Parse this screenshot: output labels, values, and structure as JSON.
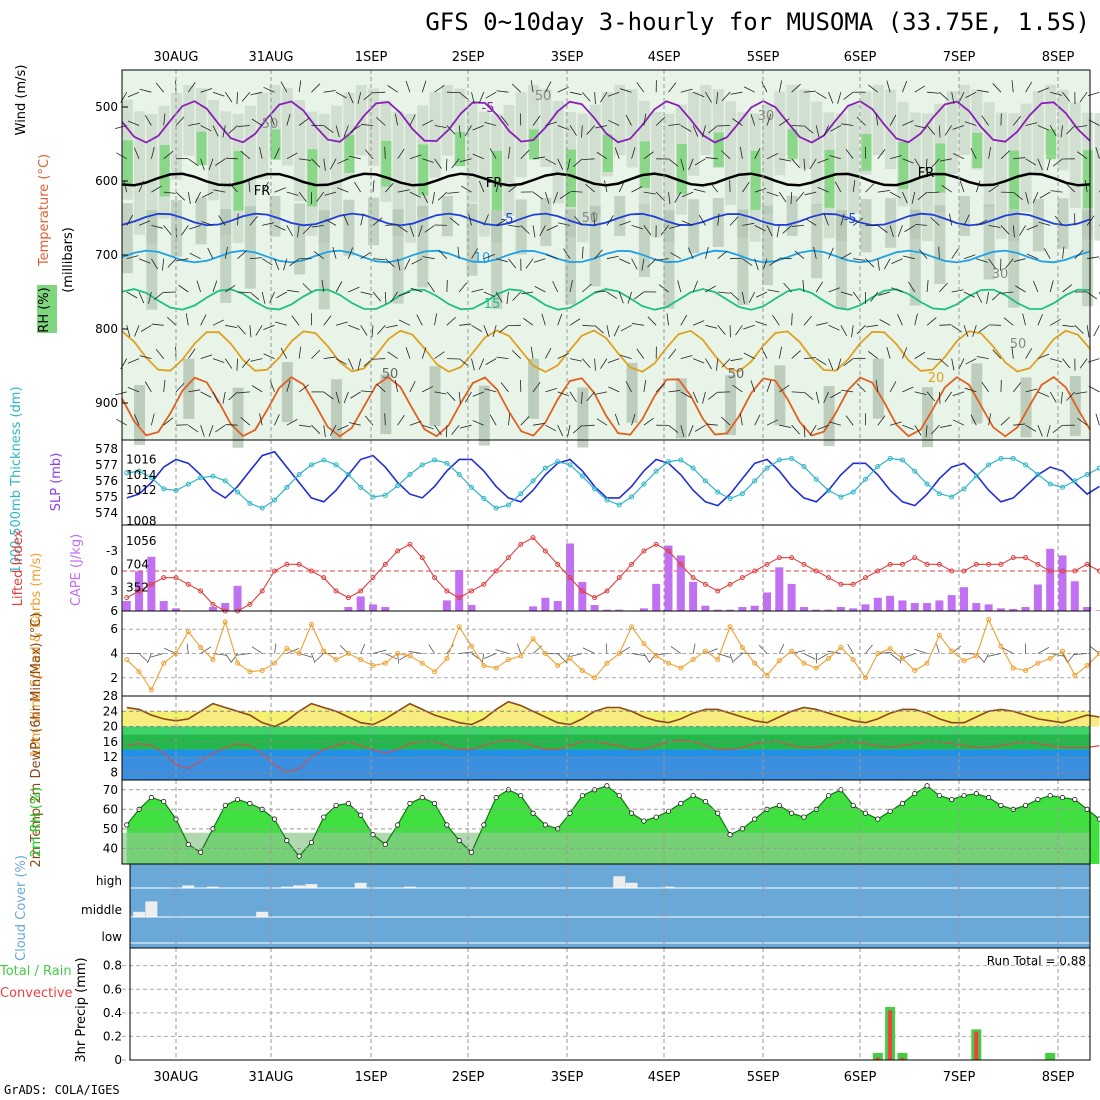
{
  "title": "GFS 0~10day 3-hourly for MUSOMA (33.75E, 1.5S)",
  "footer": "GrADS: COLA/IGES",
  "dates": [
    "30AUG",
    "31AUG",
    "1SEP",
    "2SEP",
    "3SEP",
    "4SEP",
    "5SEP",
    "6SEP",
    "7SEP",
    "8SEP"
  ],
  "colors": {
    "rh_light": "#e8f4e8",
    "rh_mid": "#c9d9c9",
    "rh_gray": "#a9bca9",
    "rh_green": "#7ed67e",
    "rh_bright": "#2bd62b",
    "temp_m5": "#8a1fb8",
    "temp_fr": "#000000",
    "temp_5": "#1f3fd6",
    "temp_10": "#1f9fe6",
    "temp_15": "#1fbf7f",
    "temp_20": "#e0a020",
    "temp_25": "#e06020",
    "slp": "#1f2fd6",
    "thk": "#2fb6c9",
    "li": "#e04040",
    "cape": "#c070f0",
    "wind": "#f0a030",
    "temp2m": "#8a4a1a",
    "dewpt": "#d05050",
    "rh2m": "#22cc22",
    "cloud_bg": "#6aa8d8",
    "precip_total": "#44cc44",
    "precip_conv": "#ee4040"
  },
  "chart_data": [
    {
      "panel": "profile",
      "type": "heatmap",
      "ylabel_wind": "Wind (m/s)",
      "ylabel_temp": "Temperature (°C)",
      "ylabel_rh": "RH (%)",
      "ylabel_units": "(millibars)",
      "y_ticks": [
        "500",
        "600",
        "700",
        "800",
        "900"
      ],
      "ylim": [
        450,
        950
      ],
      "isotherm_labels": [
        "-5",
        "FR",
        "FR",
        "FR",
        "-5",
        "-5",
        "10",
        "15",
        "20",
        "50",
        "50",
        "30",
        "50",
        "50",
        "50",
        "30",
        "50"
      ],
      "isotherms": [
        {
          "name": "-5",
          "mean_level": 520,
          "amp": 28
        },
        {
          "name": "FR",
          "mean_level": 598,
          "amp": 8
        },
        {
          "name": "5",
          "mean_level": 652,
          "amp": 8
        },
        {
          "name": "10",
          "mean_level": 702,
          "amp": 8
        },
        {
          "name": "15",
          "mean_level": 760,
          "amp": 14
        },
        {
          "name": "20",
          "mean_level": 830,
          "amp": 28
        },
        {
          "name": "25",
          "mean_level": 905,
          "amp": 40
        }
      ]
    },
    {
      "panel": "slp_thickness",
      "type": "line",
      "ylabel_left": "1000-500mb Thickness (dm)",
      "ylabel_right": "SLP (mb)",
      "y_ticks_left": [
        "578",
        "577",
        "576",
        "575",
        "574"
      ],
      "y_ticks_right": [
        "1016",
        "1014",
        "1012",
        "1008"
      ],
      "slp": [
        1011,
        1011.5,
        1013,
        1015,
        1016,
        1015.5,
        1014,
        1012,
        1011,
        1012.5,
        1014.5,
        1016.5,
        1017,
        1015,
        1013,
        1011,
        1010.5,
        1012,
        1014,
        1016,
        1016.5,
        1015,
        1013,
        1011.5,
        1011,
        1012.5,
        1014.5,
        1016,
        1016,
        1014.5,
        1012.5,
        1011,
        1010.5,
        1012,
        1014,
        1015.5,
        1016,
        1014.5,
        1012.5,
        1011,
        1011,
        1012.5,
        1014.5,
        1016,
        1015.5,
        1014,
        1012,
        1010.5,
        1010,
        1011.5,
        1013.5,
        1015.5,
        1016,
        1014.5,
        1012.5,
        1011,
        1010.5,
        1012,
        1014,
        1015.5,
        1015.5,
        1014,
        1012,
        1010.5,
        1010,
        1011.5,
        1013.5,
        1015,
        1015.5,
        1014,
        1012,
        1010.5,
        1011,
        1012.5,
        1014,
        1015,
        1014.5,
        1013,
        1011.5,
        1012.5
      ],
      "thickness": [
        576.5,
        576.6,
        576.2,
        575.5,
        575.4,
        575.8,
        576.2,
        576.3,
        576.0,
        575.3,
        574.6,
        574.3,
        574.8,
        575.6,
        576.4,
        577.0,
        577.3,
        577.0,
        576.4,
        575.6,
        575.0,
        575.1,
        575.7,
        576.4,
        577.0,
        577.3,
        577.1,
        576.4,
        575.6,
        574.9,
        574.3,
        574.5,
        575.2,
        576.0,
        576.8,
        577.2,
        577.0,
        576.3,
        575.5,
        574.8,
        574.5,
        575.0,
        575.8,
        576.6,
        577.2,
        577.3,
        576.8,
        576.0,
        575.3,
        574.9,
        575.2,
        576.0,
        576.8,
        577.3,
        577.4,
        576.9,
        576.1,
        575.4,
        575.0,
        575.3,
        576.1,
        576.9,
        577.4,
        577.3,
        576.6,
        575.8,
        575.2,
        575.0,
        575.5,
        576.3,
        577.0,
        577.4,
        577.4,
        577.0,
        576.4,
        575.8,
        575.6,
        576.0,
        576.4,
        576.8
      ]
    },
    {
      "panel": "li_cape",
      "type": "bar",
      "ylabel_left": "Lifted Index",
      "ylabel_right": "CAPE (J/kg)",
      "y_ticks_left": [
        "-3",
        "0",
        "3",
        "6"
      ],
      "y_ticks_right": [
        "1056",
        "704",
        "352"
      ],
      "lifted_index": [
        4,
        3,
        2,
        1,
        1,
        2,
        3,
        5,
        6,
        6,
        5,
        3,
        0,
        -1,
        -1,
        0,
        1,
        3,
        4,
        3,
        1,
        -1,
        -3,
        -4,
        -2,
        1,
        3,
        4,
        3,
        2,
        0,
        -2,
        -4,
        -5,
        -3,
        -1,
        1,
        3,
        4,
        3,
        1,
        -1,
        -3,
        -4,
        -3,
        -1,
        1,
        2,
        3,
        2,
        1,
        0,
        -1,
        -2,
        -2,
        -1,
        0,
        1,
        2,
        2,
        1,
        0,
        -1,
        -1,
        -2,
        -1,
        -1,
        0,
        0,
        -1,
        -1,
        -1,
        -2,
        -2,
        -1,
        0,
        0,
        0,
        -1,
        0
      ],
      "cape": [
        150,
        600,
        820,
        150,
        40,
        0,
        0,
        60,
        120,
        380,
        0,
        0,
        0,
        0,
        0,
        0,
        0,
        0,
        60,
        220,
        100,
        60,
        0,
        0,
        0,
        0,
        160,
        620,
        90,
        0,
        0,
        0,
        0,
        70,
        200,
        150,
        1020,
        440,
        90,
        20,
        20,
        0,
        40,
        410,
        990,
        840,
        440,
        80,
        20,
        20,
        60,
        80,
        280,
        660,
        410,
        60,
        20,
        20,
        60,
        40,
        100,
        200,
        230,
        160,
        120,
        120,
        160,
        240,
        360,
        120,
        100,
        40,
        30,
        60,
        400,
        940,
        840,
        450,
        60,
        10
      ]
    },
    {
      "panel": "wind10m",
      "type": "line",
      "ylabel": "10m Wind Speed & Barbs (m/s)",
      "y_ticks": [
        "6",
        "4",
        "2"
      ],
      "ylim": [
        0.5,
        7.5
      ],
      "speed": [
        3.5,
        2.5,
        1.0,
        3.2,
        4.0,
        5.8,
        4.5,
        3.5,
        6.6,
        3.2,
        2.5,
        2.6,
        3.2,
        4.4,
        4.0,
        6.4,
        4.2,
        3.5,
        4.0,
        3.5,
        3.0,
        3.2,
        4.0,
        3.8,
        3.2,
        2.5,
        3.6,
        6.2,
        4.6,
        3.0,
        2.8,
        3.5,
        3.8,
        5.2,
        4.0,
        3.0,
        3.6,
        2.6,
        2.0,
        3.2,
        4.0,
        6.2,
        4.8,
        3.8,
        3.2,
        2.8,
        3.5,
        4.2,
        3.5,
        6.2,
        4.5,
        3.2,
        2.2,
        3.4,
        4.2,
        3.2,
        2.8,
        3.6,
        4.5,
        3.5,
        2.0,
        4.0,
        4.4,
        3.6,
        2.6,
        3.2,
        5.5,
        4.2,
        3.4,
        3.8,
        6.8,
        4.6,
        2.8,
        2.6,
        3.2,
        3.6,
        4.2,
        2.2,
        3.0,
        4.0
      ]
    },
    {
      "panel": "temp2m",
      "type": "area",
      "ylabel": "2m Temp 2m DewPt (6hr Min/Max) (°C)",
      "y_ticks": [
        "28",
        "24",
        "20",
        "16",
        "12",
        "8"
      ],
      "ylim": [
        6,
        28
      ],
      "temp": [
        25,
        24.5,
        23,
        22,
        21.5,
        22,
        24,
        26,
        25,
        24,
        23,
        21,
        20,
        21.5,
        24,
        26,
        25,
        24,
        22.5,
        21,
        20.5,
        22,
        24,
        26,
        24.5,
        23,
        22,
        21,
        20.5,
        22,
        24.5,
        26.5,
        25.5,
        24,
        22.5,
        21,
        20.5,
        22,
        24,
        25,
        25,
        24,
        22.5,
        21.5,
        21,
        22,
        23.5,
        24.5,
        24.5,
        23.5,
        22.5,
        21.5,
        21,
        22.5,
        24,
        25,
        24.5,
        23.5,
        22.5,
        21.5,
        21,
        22,
        23.5,
        24.5,
        24.5,
        23.5,
        22,
        21,
        21,
        22.5,
        24,
        24.5,
        24,
        23,
        22,
        21.5,
        21,
        22,
        23,
        22.5
      ],
      "dewpt": [
        15,
        15.5,
        15,
        13,
        10,
        9,
        11,
        13,
        14.5,
        15.5,
        15,
        13,
        10,
        8,
        9,
        12,
        14,
        15,
        16,
        15,
        14,
        13,
        14,
        15.5,
        16,
        16,
        15,
        14,
        14,
        15,
        16,
        16.5,
        16,
        15,
        14,
        14,
        15,
        16,
        16,
        15.5,
        15,
        14,
        14,
        15,
        16,
        16.5,
        16,
        15,
        14,
        14,
        14.5,
        15.5,
        16,
        16,
        15,
        14.5,
        14.5,
        15,
        16,
        16,
        15.5,
        15,
        14.5,
        15,
        15.5,
        16,
        16,
        15.5,
        15,
        14.5,
        14.5,
        15,
        15.5,
        16,
        15.5,
        15,
        14.5,
        14.5,
        14.5,
        15
      ]
    },
    {
      "panel": "rh2m",
      "type": "area",
      "ylabel": "2m RH (%)",
      "y_ticks": [
        "70",
        "60",
        "50",
        "40"
      ],
      "ylim": [
        32,
        75
      ],
      "rh": [
        52,
        60,
        66,
        64,
        55,
        42,
        38,
        50,
        62,
        65,
        63,
        60,
        55,
        44,
        36,
        43,
        56,
        62,
        63,
        57,
        47,
        42,
        52,
        63,
        66,
        63,
        52,
        44,
        38,
        52,
        66,
        70,
        67,
        58,
        52,
        50,
        58,
        67,
        70,
        72,
        67,
        58,
        54,
        56,
        59,
        63,
        67,
        64,
        58,
        47,
        50,
        55,
        60,
        62,
        58,
        56,
        60,
        67,
        70,
        62,
        58,
        55,
        59,
        63,
        68,
        72,
        67,
        65,
        67,
        68,
        66,
        62,
        60,
        62,
        65,
        67,
        66,
        65,
        60,
        55
      ]
    },
    {
      "panel": "cloud",
      "type": "bar",
      "ylabel": "Cloud Cover (%)",
      "y_ticks": [
        "high",
        "middle",
        "low"
      ],
      "high": [
        0,
        0,
        0,
        0,
        0,
        10,
        0,
        5,
        0,
        0,
        0,
        0,
        0,
        5,
        10,
        15,
        0,
        0,
        0,
        20,
        0,
        0,
        0,
        5,
        0,
        0,
        0,
        0,
        0,
        0,
        0,
        0,
        0,
        0,
        0,
        0,
        0,
        0,
        0,
        0,
        45,
        20,
        0,
        0,
        5,
        0,
        0,
        0,
        0,
        0,
        0,
        0,
        0,
        0,
        0,
        0,
        0,
        0,
        0,
        0,
        0,
        0,
        0,
        0,
        0,
        0,
        0,
        0,
        0,
        0,
        0,
        0,
        0,
        0,
        0,
        0,
        0,
        0,
        0,
        0
      ],
      "middle": [
        0,
        20,
        60,
        0,
        0,
        0,
        0,
        0,
        0,
        0,
        0,
        20,
        0,
        0,
        0,
        0,
        0,
        0,
        0,
        0,
        0,
        0,
        0,
        0,
        0,
        0,
        0,
        0,
        0,
        0,
        0,
        0,
        0,
        0,
        0,
        0,
        0,
        0,
        0,
        0,
        0,
        0,
        0,
        0,
        0,
        0,
        0,
        0,
        0,
        0,
        0,
        0,
        0,
        0,
        0,
        0,
        0,
        0,
        0,
        0,
        0,
        0,
        0,
        0,
        0,
        0,
        0,
        0,
        0,
        0,
        0,
        0,
        0,
        0,
        0,
        0,
        0,
        0,
        0,
        0
      ],
      "low": [
        0,
        0,
        0,
        0,
        0,
        0,
        0,
        0,
        0,
        0,
        0,
        0,
        0,
        0,
        0,
        0,
        0,
        0,
        0,
        0,
        0,
        0,
        0,
        0,
        0,
        0,
        0,
        0,
        0,
        0,
        0,
        0,
        0,
        0,
        0,
        0,
        0,
        0,
        0,
        0,
        0,
        0,
        0,
        0,
        0,
        0,
        0,
        0,
        0,
        0,
        0,
        0,
        0,
        0,
        0,
        0,
        0,
        0,
        0,
        0,
        0,
        0,
        0,
        0,
        0,
        0,
        0,
        0,
        0,
        0,
        0,
        0,
        0,
        0,
        0,
        0,
        0,
        0,
        0,
        0
      ]
    },
    {
      "panel": "precip",
      "type": "bar",
      "ylabel_left": "Total / Rain",
      "ylabel_conv": "Convective",
      "ylabel": "3hr Precip (mm)",
      "annotation": "Run Total = 0.88",
      "y_ticks": [
        "0.8",
        "0.6",
        "0.4",
        "0.2",
        "0"
      ],
      "ylim": [
        0,
        0.95
      ],
      "total": [
        0,
        0,
        0,
        0,
        0,
        0,
        0,
        0,
        0,
        0,
        0,
        0,
        0,
        0,
        0,
        0,
        0,
        0,
        0,
        0,
        0,
        0,
        0,
        0,
        0,
        0,
        0,
        0,
        0,
        0,
        0,
        0,
        0,
        0,
        0,
        0,
        0,
        0,
        0,
        0,
        0,
        0,
        0,
        0,
        0,
        0,
        0,
        0,
        0,
        0,
        0,
        0,
        0,
        0,
        0,
        0,
        0,
        0,
        0,
        0,
        0,
        0.06,
        0.45,
        0.06,
        0,
        0,
        0,
        0,
        0,
        0.26,
        0,
        0,
        0,
        0,
        0,
        0.06,
        0,
        0,
        0,
        0
      ],
      "convective": [
        0,
        0,
        0,
        0,
        0,
        0,
        0,
        0,
        0,
        0,
        0,
        0,
        0,
        0,
        0,
        0,
        0,
        0,
        0,
        0,
        0,
        0,
        0,
        0,
        0,
        0,
        0,
        0,
        0,
        0,
        0,
        0,
        0,
        0,
        0,
        0,
        0,
        0,
        0,
        0,
        0,
        0,
        0,
        0,
        0,
        0,
        0,
        0,
        0,
        0,
        0,
        0,
        0,
        0,
        0,
        0,
        0,
        0,
        0,
        0,
        0,
        0.02,
        0.42,
        0.02,
        0,
        0,
        0,
        0,
        0,
        0.24,
        0,
        0,
        0,
        0,
        0,
        0,
        0,
        0,
        0,
        0
      ]
    }
  ]
}
